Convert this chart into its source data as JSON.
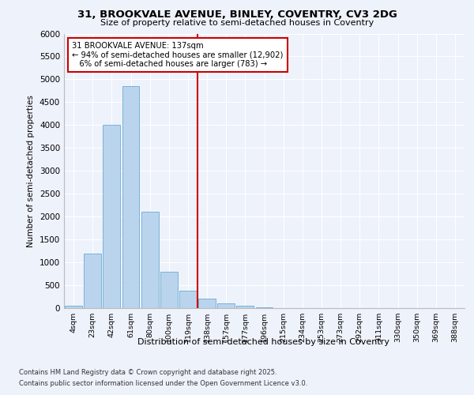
{
  "title1": "31, BROOKVALE AVENUE, BINLEY, COVENTRY, CV3 2DG",
  "title2": "Size of property relative to semi-detached houses in Coventry",
  "xlabel": "Distribution of semi-detached houses by size in Coventry",
  "ylabel": "Number of semi-detached properties",
  "bar_labels": [
    "4sqm",
    "23sqm",
    "42sqm",
    "61sqm",
    "80sqm",
    "100sqm",
    "119sqm",
    "138sqm",
    "157sqm",
    "177sqm",
    "196sqm",
    "215sqm",
    "234sqm",
    "253sqm",
    "273sqm",
    "292sqm",
    "311sqm",
    "330sqm",
    "350sqm",
    "369sqm",
    "388sqm"
  ],
  "bar_values": [
    60,
    1200,
    4000,
    4850,
    2100,
    800,
    380,
    200,
    110,
    50,
    10,
    5,
    3,
    2,
    1,
    1,
    0,
    0,
    0,
    0,
    0
  ],
  "bar_color": "#bad4ed",
  "bar_edge_color": "#6aabd2",
  "property_sqm": 137,
  "pct_smaller": 94,
  "n_smaller": 12902,
  "pct_larger": 6,
  "n_larger": 783,
  "vline_color": "#cc0000",
  "ylim": [
    0,
    6000
  ],
  "yticks": [
    0,
    500,
    1000,
    1500,
    2000,
    2500,
    3000,
    3500,
    4000,
    4500,
    5000,
    5500,
    6000
  ],
  "background_color": "#eef2fb",
  "footer1": "Contains HM Land Registry data © Crown copyright and database right 2025.",
  "footer2": "Contains public sector information licensed under the Open Government Licence v3.0."
}
